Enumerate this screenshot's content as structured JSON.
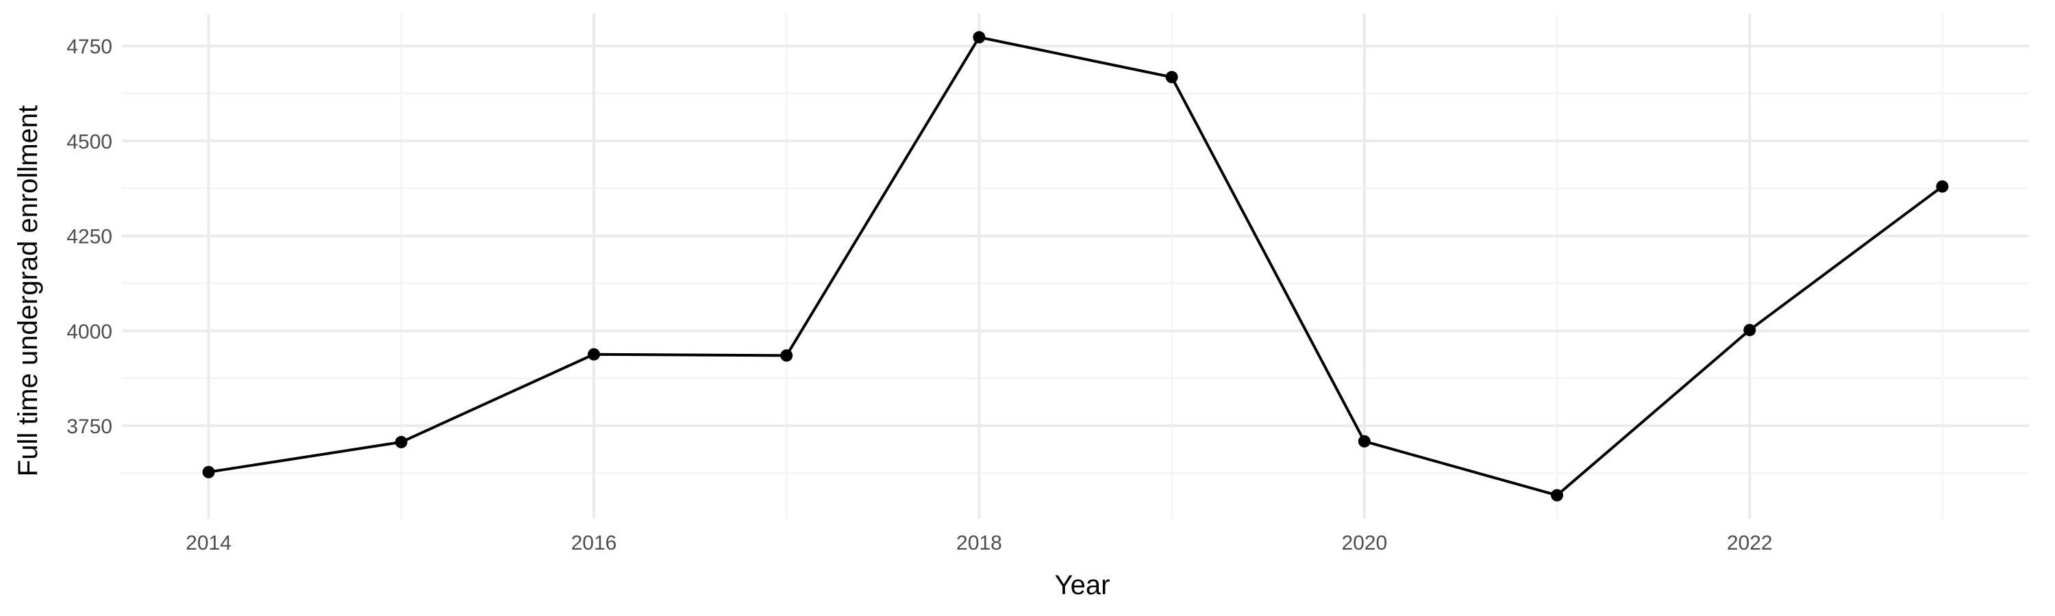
{
  "chart_data": {
    "type": "line",
    "title": "",
    "xlabel": "Year",
    "ylabel": "Full time undergrad enrollment",
    "x": [
      2014,
      2015,
      2016,
      2017,
      2018,
      2019,
      2020,
      2021,
      2022,
      2023
    ],
    "series": [
      {
        "values": [
          3628,
          3707,
          3938,
          3935,
          4773,
          4668,
          3709,
          3567,
          4002,
          4380
        ]
      }
    ],
    "xlim": [
      2013.55,
      2023.45
    ],
    "ylim": [
      3505,
      4835
    ],
    "x_ticks": [
      2014,
      2016,
      2018,
      2020,
      2022
    ],
    "x_tick_labels": [
      "2014",
      "2016",
      "2018",
      "2020",
      "2022"
    ],
    "y_ticks": [
      3750,
      4000,
      4250,
      4500,
      4750
    ],
    "y_tick_labels": [
      "3750",
      "4000",
      "4250",
      "4500",
      "4750"
    ],
    "grid": true,
    "legend": "none",
    "colors": {
      "line": "#000000",
      "points": "#000000",
      "grid_major": "#ebebeb",
      "grid_minor": "#f4f4f4",
      "tick_text": "#4d4d4d"
    }
  }
}
